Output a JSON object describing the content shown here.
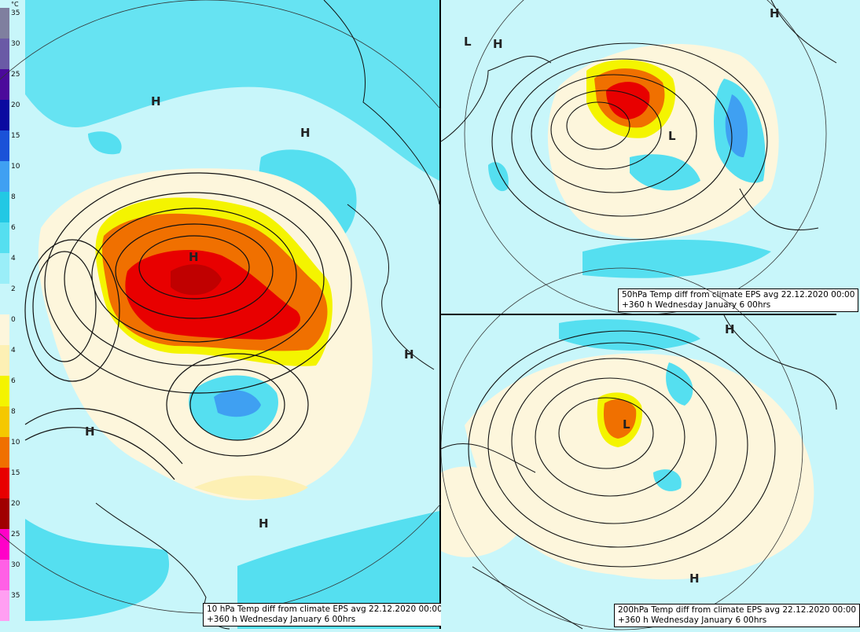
{
  "legend": {
    "unit": "°C",
    "ticks": [
      "35",
      "30",
      "25",
      "20",
      "15",
      "10",
      "8",
      "6",
      "4",
      "2",
      "0",
      "4",
      "6",
      "8",
      "10",
      "15",
      "20",
      "25",
      "30",
      "35"
    ],
    "colors": [
      "#7f7f9f",
      "#6a5aa6",
      "#4b0a9b",
      "#0a0aa0",
      "#1a52d8",
      "#3fa0f2",
      "#22c8e4",
      "#55dff0",
      "#9aeef8",
      "#c8f6fa",
      "#fdf6dc",
      "#fdf0b4",
      "#f4f400",
      "#f5c800",
      "#f07000",
      "#e80000",
      "#a00000",
      "#ff00c8",
      "#ff60e6",
      "#ff9ff2"
    ]
  },
  "panels": {
    "p10": {
      "caption_line1": "10 hPa Temp diff from climate EPS avg 22.12.2020 00:00",
      "caption_line2": "+360 h Wednesday January 6 00hrs",
      "markers": [
        "H",
        "H",
        "H",
        "H",
        "H",
        "H"
      ]
    },
    "p50": {
      "caption_line1": "50hPa Temp diff from climate EPS avg 22.12.2020 00:00",
      "caption_line2": "+360 h Wednesday January 6 00hrs",
      "markers": [
        "L",
        "H",
        "H",
        "L"
      ]
    },
    "p200": {
      "caption_line1": "200hPa Temp diff from climate EPS avg 22.12.2020 00:00",
      "caption_line2": "+360 h Wednesday January 6 00hrs",
      "markers": [
        "H",
        "H",
        "L"
      ]
    }
  }
}
